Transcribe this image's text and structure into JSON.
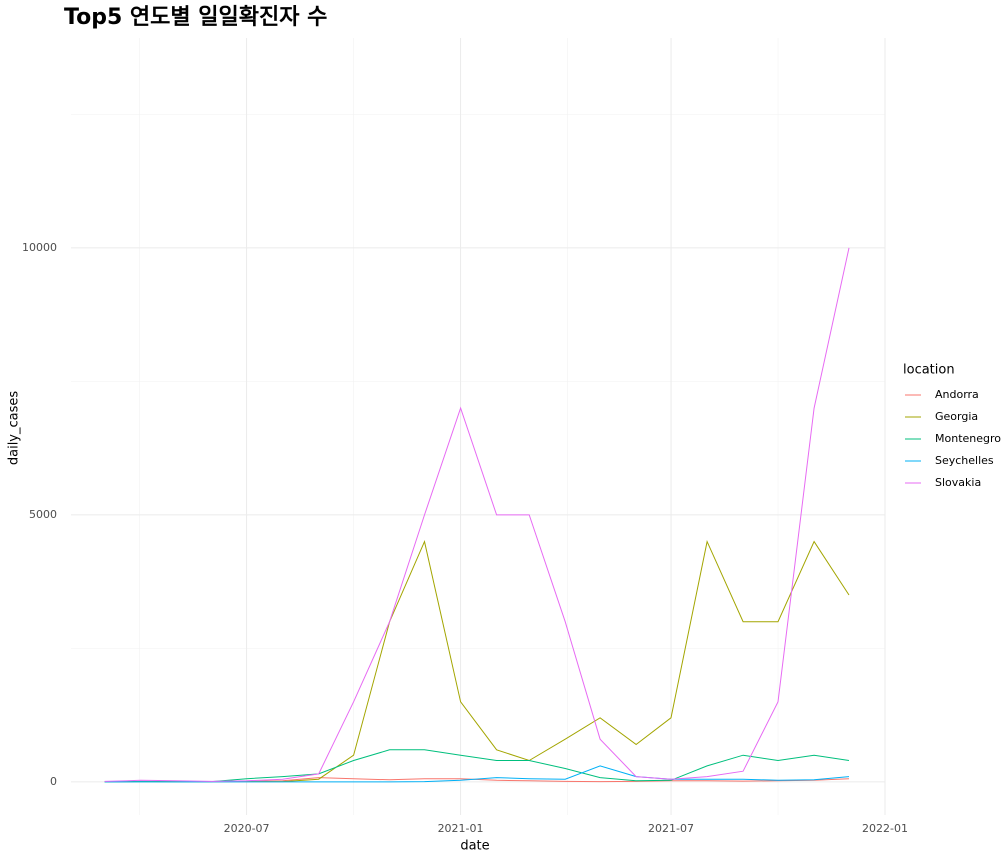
{
  "chart_data": {
    "type": "line",
    "title": "Top5 연도별 일일확진자 수",
    "x_label": "date",
    "y_label": "daily_cases",
    "legend_title": "location",
    "legend": "right",
    "grid": true,
    "x": [
      "2020-03",
      "2020-04",
      "2020-05",
      "2020-06",
      "2020-07",
      "2020-08",
      "2020-09",
      "2020-10",
      "2020-11",
      "2020-12",
      "2021-01",
      "2021-02",
      "2021-03",
      "2021-04",
      "2021-05",
      "2021-06",
      "2021-07",
      "2021-08",
      "2021-09",
      "2021-10",
      "2021-11",
      "2021-12"
    ],
    "xlim": [
      "2020-02",
      "2022-01"
    ],
    "xticks": [
      "2020-07",
      "2021-01",
      "2021-07",
      "2022-01"
    ],
    "ylim": [
      -620,
      13930
    ],
    "yticks": [
      0,
      5000,
      10000
    ],
    "series": [
      {
        "name": "Andorra",
        "color": "#F8766D",
        "values": [
          5,
          10,
          5,
          2,
          10,
          20,
          80,
          60,
          40,
          60,
          60,
          30,
          20,
          10,
          5,
          10,
          20,
          20,
          15,
          20,
          30,
          60
        ]
      },
      {
        "name": "Georgia",
        "color": "#A3A500",
        "values": [
          0,
          5,
          5,
          5,
          5,
          5,
          50,
          500,
          3000,
          4500,
          1500,
          600,
          400,
          800,
          1200,
          700,
          1200,
          4500,
          3000,
          3000,
          4500,
          3500
        ]
      },
      {
        "name": "Montenegro",
        "color": "#00BF7D",
        "values": [
          0,
          5,
          0,
          5,
          60,
          100,
          150,
          400,
          600,
          600,
          500,
          400,
          400,
          250,
          80,
          20,
          30,
          300,
          500,
          400,
          500,
          400
        ]
      },
      {
        "name": "Seychelles",
        "color": "#00B0F6",
        "values": [
          0,
          0,
          0,
          0,
          0,
          0,
          0,
          0,
          0,
          5,
          30,
          80,
          60,
          50,
          300,
          100,
          50,
          50,
          50,
          30,
          40,
          100
        ]
      },
      {
        "name": "Slovakia",
        "color": "#E76BF3",
        "values": [
          10,
          30,
          20,
          10,
          20,
          50,
          150,
          1500,
          3000,
          5000,
          7000,
          5000,
          5000,
          3000,
          800,
          100,
          50,
          100,
          200,
          1500,
          7000,
          10000
        ]
      }
    ]
  }
}
